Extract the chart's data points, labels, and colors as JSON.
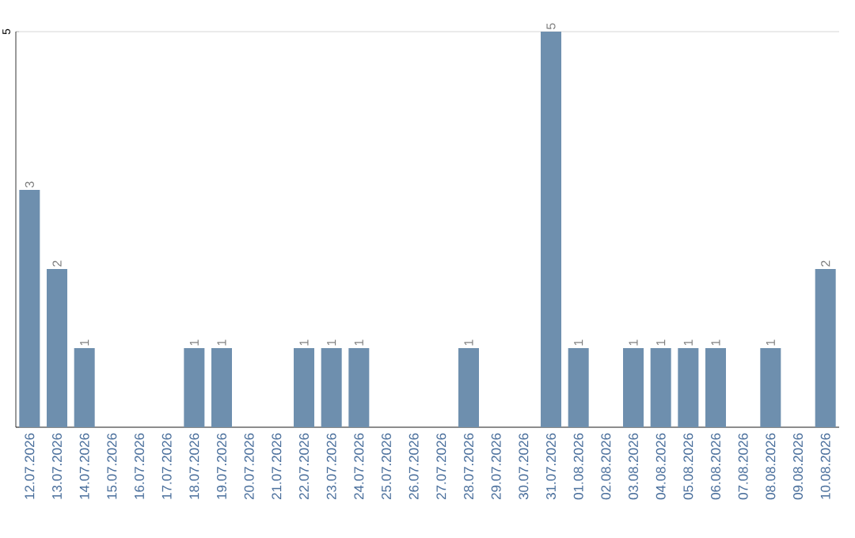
{
  "chart_data": {
    "type": "bar",
    "categories": [
      "12.07.2026",
      "13.07.2026",
      "14.07.2026",
      "15.07.2026",
      "16.07.2026",
      "17.07.2026",
      "18.07.2026",
      "19.07.2026",
      "20.07.2026",
      "21.07.2026",
      "22.07.2026",
      "23.07.2026",
      "24.07.2026",
      "25.07.2026",
      "26.07.2026",
      "27.07.2026",
      "28.07.2026",
      "29.07.2026",
      "30.07.2026",
      "31.07.2026",
      "01.08.2026",
      "02.08.2026",
      "03.08.2026",
      "04.08.2026",
      "05.08.2026",
      "06.08.2026",
      "07.08.2026",
      "08.08.2026",
      "09.08.2026",
      "10.08.2026"
    ],
    "values": [
      3,
      2,
      1,
      null,
      null,
      null,
      1,
      1,
      null,
      null,
      1,
      1,
      1,
      null,
      null,
      null,
      1,
      null,
      null,
      5,
      1,
      null,
      1,
      1,
      1,
      1,
      null,
      1,
      null,
      2
    ],
    "color": "#6e8fae",
    "ylim": [
      0,
      5
    ],
    "yticks": [
      {
        "value": 0,
        "label": null
      },
      5
    ],
    "grid": "y",
    "data_labels": true
  }
}
